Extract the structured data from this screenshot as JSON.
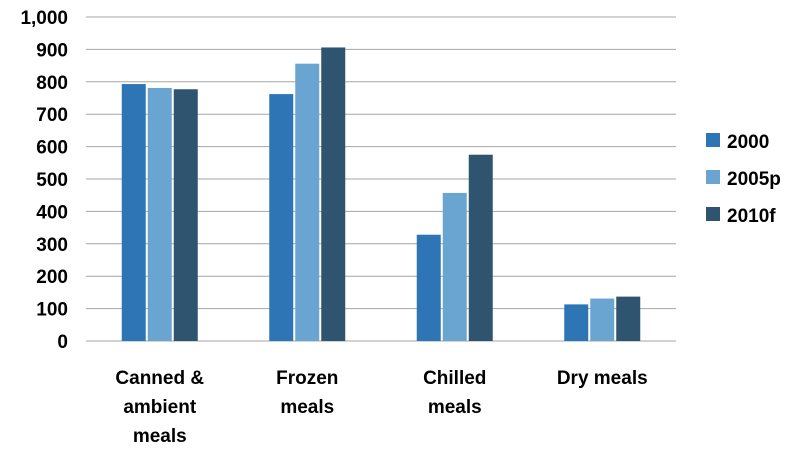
{
  "chart_data": {
    "type": "bar",
    "title": "",
    "xlabel": "",
    "ylabel": "",
    "categories": [
      [
        "Canned &",
        "ambient",
        "meals"
      ],
      [
        "Frozen",
        "meals"
      ],
      [
        "Chilled",
        "meals"
      ],
      [
        "Dry meals"
      ]
    ],
    "series": [
      {
        "name": "2000",
        "color": "#2e75b6",
        "values": [
          793,
          762,
          328,
          113
        ]
      },
      {
        "name": "2005p",
        "color": "#6aa5d2",
        "values": [
          781,
          856,
          457,
          131
        ]
      },
      {
        "name": "2010f",
        "color": "#2f5470",
        "values": [
          777,
          906,
          575,
          137
        ]
      }
    ],
    "ylim": [
      0,
      1000
    ],
    "yticks": [
      0,
      100,
      200,
      300,
      400,
      500,
      600,
      700,
      800,
      900,
      1000
    ],
    "ytick_labels": [
      "0",
      "100",
      "200",
      "300",
      "400",
      "500",
      "600",
      "700",
      "800",
      "900",
      "1,000"
    ],
    "grid": true,
    "legend_position": "right"
  }
}
